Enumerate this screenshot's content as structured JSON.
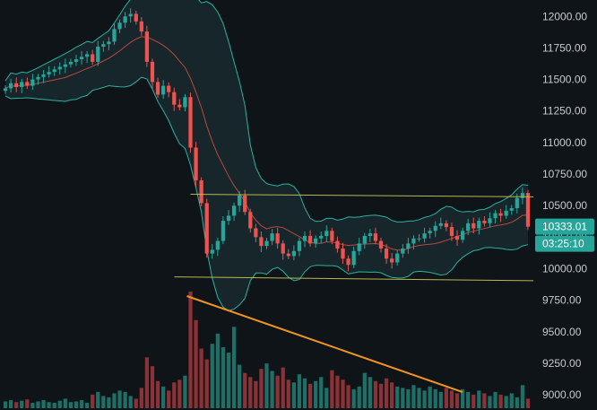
{
  "chart_data": {
    "type": "candlestick",
    "title": "",
    "ylim": [
      8880,
      12130
    ],
    "y_ticks": [
      "12000.00",
      "11750.00",
      "11500.00",
      "11250.00",
      "11000.00",
      "10750.00",
      "10500.00",
      "10250.00",
      "10000.00",
      "9750.00",
      "9500.00",
      "9250.00",
      "9000.00"
    ],
    "y_tick_values": [
      12000,
      11750,
      11500,
      11250,
      11000,
      10750,
      10500,
      10250,
      10000,
      9750,
      9500,
      9250,
      9000
    ],
    "price_badge": "10333.01",
    "timer_badge": "03:25:10",
    "colors": {
      "background": "#0f1419",
      "up": "#26a69a",
      "down": "#ef5350",
      "volume_up": "#1e6f66",
      "volume_down": "#8a3236",
      "band": "#2bb1a0",
      "band_fill": "#17262a",
      "ma": "#b8483f",
      "channel": "#b8b850",
      "trendline": "#f29420",
      "badge": "#26a69a"
    },
    "close_series": [
      11430,
      11470,
      11440,
      11480,
      11450,
      11500,
      11520,
      11540,
      11560,
      11580,
      11600,
      11620,
      11640,
      11660,
      11680,
      11700,
      11640,
      11760,
      11780,
      11800,
      11900,
      11950,
      12000,
      12020,
      11960,
      11880,
      11640,
      11480,
      11380,
      11450,
      11400,
      11300,
      11280,
      11360,
      10960,
      10700,
      10520,
      10120,
      10150,
      10220,
      10380,
      10420,
      10500,
      10580,
      10450,
      10320,
      10250,
      10180,
      10220,
      10280,
      10200,
      10120,
      10100,
      10140,
      10220,
      10260,
      10200,
      10240,
      10260,
      10300,
      10220,
      10160,
      10080,
      10030,
      10140,
      10200,
      10260,
      10280,
      10220,
      10160,
      10080,
      10050,
      10120,
      10160,
      10200,
      10240,
      10240,
      10280,
      10300,
      10340,
      10360,
      10330,
      10260,
      10230,
      10300,
      10360,
      10320,
      10380,
      10360,
      10400,
      10440,
      10420,
      10460,
      10480,
      10560,
      10600,
      10333
    ],
    "volume_series": [
      10,
      12,
      9,
      11,
      13,
      8,
      10,
      12,
      9,
      8,
      11,
      14,
      9,
      10,
      12,
      8,
      20,
      24,
      18,
      16,
      22,
      26,
      24,
      18,
      14,
      30,
      75,
      62,
      40,
      32,
      26,
      38,
      42,
      48,
      172,
      130,
      88,
      72,
      95,
      110,
      90,
      82,
      120,
      64,
      52,
      46,
      40,
      58,
      66,
      55,
      48,
      60,
      42,
      38,
      50,
      44,
      36,
      40,
      46,
      30,
      56,
      48,
      42,
      34,
      28,
      32,
      52,
      46,
      40,
      36,
      44,
      38,
      32,
      30,
      28,
      34,
      30,
      26,
      32,
      28,
      24,
      30,
      26,
      22,
      28,
      24,
      20,
      26,
      22,
      18,
      24,
      20,
      18,
      22,
      16,
      34,
      14
    ],
    "channel_upper_y": [
      10590,
      10570
    ],
    "channel_lower_y": [
      9935,
      9905
    ],
    "trendline_volume": [
      110,
      18
    ]
  }
}
